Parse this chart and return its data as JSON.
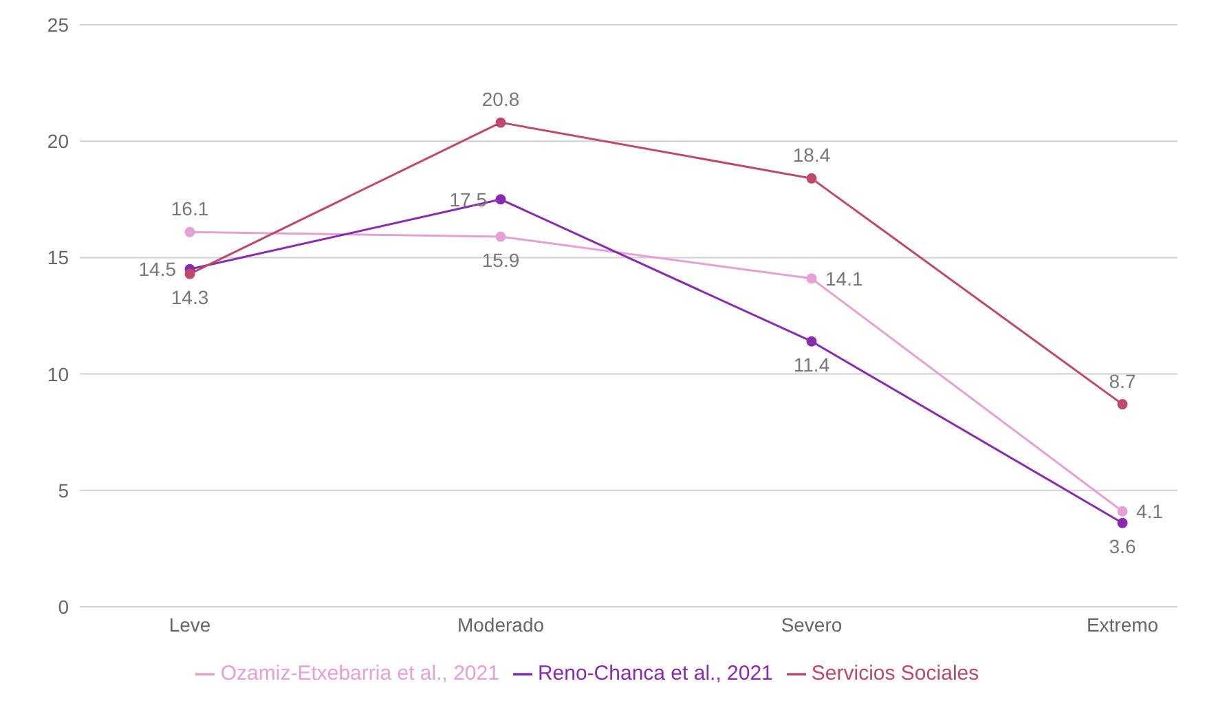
{
  "chart_data": {
    "type": "line",
    "categories": [
      "Leve",
      "Moderado",
      "Severo",
      "Extremo"
    ],
    "series": [
      {
        "name": "Ozamiz-Etxebarria et al., 2021",
        "color": "#e6a0d6",
        "values": [
          16.1,
          15.9,
          14.1,
          4.1
        ]
      },
      {
        "name": "Reno-Chanca et al., 2021",
        "color": "#8a2ab0",
        "values": [
          14.5,
          17.5,
          11.4,
          3.6
        ]
      },
      {
        "name": "Servicios Sociales",
        "color": "#c0486a",
        "values": [
          14.3,
          20.8,
          18.4,
          8.7
        ]
      }
    ],
    "ylim": [
      0,
      25
    ],
    "yticks": [
      0,
      5,
      10,
      15,
      20,
      25
    ],
    "grid": "y",
    "legend": "bottom",
    "marker": "circle",
    "line_style": "solid",
    "data_labels": true
  }
}
